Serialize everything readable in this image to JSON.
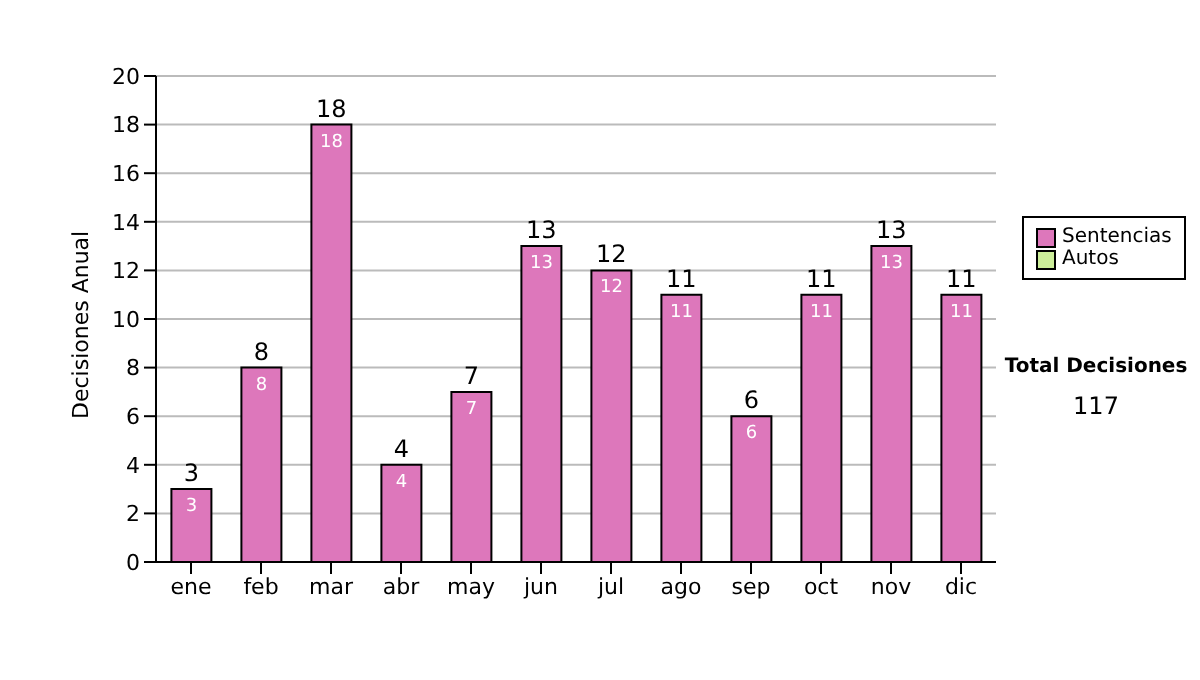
{
  "chart_data": {
    "type": "bar",
    "ylabel": "Decisiones Anual",
    "categories": [
      "ene",
      "feb",
      "mar",
      "abr",
      "may",
      "jun",
      "jul",
      "ago",
      "sep",
      "oct",
      "nov",
      "dic"
    ],
    "series": [
      {
        "name": "Sentencias",
        "color": "#dd77bb",
        "values": [
          3,
          8,
          18,
          4,
          7,
          13,
          12,
          11,
          6,
          11,
          13,
          11
        ],
        "value_labels": [
          "3",
          "8",
          "18",
          "4",
          "7",
          "13",
          "12",
          "11",
          "6",
          "11",
          "13",
          "11"
        ]
      },
      {
        "name": "Autos",
        "color": "#ccee99",
        "values": [
          null,
          null,
          null,
          null,
          null,
          null,
          null,
          null,
          null,
          null,
          null,
          null
        ]
      }
    ],
    "stacked": true,
    "totals": [
      "3",
      "8",
      "18",
      "4",
      "7",
      "13",
      "12",
      "11",
      "6",
      "11",
      "13",
      "11"
    ],
    "ylim": [
      0,
      20
    ],
    "yticks": [
      0,
      2,
      4,
      6,
      8,
      10,
      12,
      14,
      16,
      18,
      20
    ],
    "grid": "y",
    "legend": "right",
    "annotations": [
      "Total Decisiones",
      "117"
    ]
  }
}
